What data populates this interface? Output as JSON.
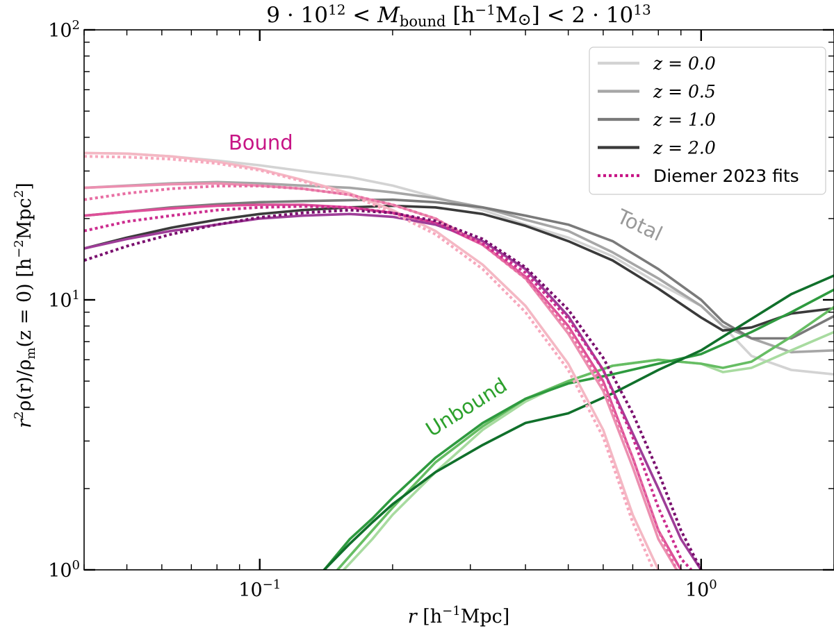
{
  "chart_data": {
    "type": "line",
    "title": "9·10¹² < M_bound [h⁻¹M⊙] < 2·10¹³",
    "title_parts": {
      "prefix": "9 · 10",
      "exp1": "12",
      "lt": " < ",
      "M": "M",
      "sub": "bound",
      "unit_open": " [h",
      "unit_exp": "−1",
      "unit_msun": "M",
      "unit_close": "] < 2 · 10",
      "exp2": "13"
    },
    "xlabel": "r [h⁻¹Mpc]",
    "xlabel_parts": {
      "r": "r",
      "open": " [h",
      "exp": "−1",
      "close": "Mpc]"
    },
    "ylabel": "r²ρ(r)/ρm(z = 0) [h⁻²Mpc²]",
    "ylabel_parts": {
      "r": "r",
      "rexp": "2",
      "rho": "ρ(r)/ρ",
      "msub": "m",
      "zpart": "(z = 0) [h",
      "hexp": "−2",
      "mpc": "Mpc",
      "mexp": "2",
      "close": "]"
    },
    "xscale": "log",
    "yscale": "log",
    "xlim": [
      0.04,
      2.0
    ],
    "ylim": [
      1,
      100
    ],
    "xticks": [
      {
        "value": 0.1,
        "base": "10",
        "exp": "−1"
      },
      {
        "value": 1.0,
        "base": "10",
        "exp": "0"
      }
    ],
    "yticks": [
      {
        "value": 1,
        "base": "10",
        "exp": "0"
      },
      {
        "value": 10,
        "base": "10",
        "exp": "1"
      },
      {
        "value": 100,
        "base": "10",
        "exp": "2"
      }
    ],
    "legend": {
      "position": "top-right",
      "entries": [
        {
          "label": "z = 0.0",
          "color": "#d3d3d3",
          "style": "solid"
        },
        {
          "label": "z = 0.5",
          "color": "#a6a6a6",
          "style": "solid"
        },
        {
          "label": "z = 1.0",
          "color": "#7a7a7a",
          "style": "solid"
        },
        {
          "label": "z = 2.0",
          "color": "#3a3a3a",
          "style": "solid"
        },
        {
          "label": "Diemer 2023 fits",
          "color": "#c71585",
          "style": "dotted"
        }
      ]
    },
    "annotations": [
      {
        "text": "Bound",
        "x": 0.085,
        "y": 36,
        "rotate": 0,
        "color": "#c71585"
      },
      {
        "text": "Total",
        "x": 0.64,
        "y": 19.5,
        "rotate": 25,
        "color": "#999999"
      },
      {
        "text": "Unbound",
        "x": 0.245,
        "y": 3.1,
        "rotate": -32,
        "color": "#2ca02c"
      }
    ],
    "series": [
      {
        "name": "Total z=0.0",
        "group": "total",
        "z": "0.0",
        "color": "#d3d3d3",
        "x": [
          0.04,
          0.05,
          0.063,
          0.08,
          0.1,
          0.125,
          0.16,
          0.2,
          0.25,
          0.32,
          0.4,
          0.5,
          0.63,
          0.8,
          1.0,
          1.12,
          1.3,
          1.6,
          2.0
        ],
        "y": [
          35,
          34.8,
          34,
          32.8,
          31.5,
          30,
          28.5,
          26.5,
          24,
          21.5,
          19,
          17,
          14.5,
          11.5,
          9.5,
          8,
          6.2,
          5.5,
          5.3
        ]
      },
      {
        "name": "Total z=0.5",
        "group": "total",
        "z": "0.5",
        "color": "#a6a6a6",
        "x": [
          0.04,
          0.05,
          0.063,
          0.08,
          0.1,
          0.125,
          0.16,
          0.2,
          0.25,
          0.32,
          0.4,
          0.5,
          0.63,
          0.8,
          1.0,
          1.12,
          1.3,
          1.6,
          2.0
        ],
        "y": [
          26,
          26.5,
          27,
          27.3,
          27,
          26.5,
          26,
          25,
          23.8,
          22,
          19.8,
          18,
          15,
          12,
          9.5,
          8,
          7.2,
          6.4,
          6.5
        ]
      },
      {
        "name": "Total z=1.0",
        "group": "total",
        "z": "1.0",
        "color": "#7a7a7a",
        "x": [
          0.04,
          0.05,
          0.063,
          0.08,
          0.1,
          0.125,
          0.16,
          0.2,
          0.25,
          0.32,
          0.4,
          0.5,
          0.63,
          0.8,
          1.0,
          1.12,
          1.3,
          1.6,
          2.0
        ],
        "y": [
          20.5,
          21.2,
          22,
          22.6,
          23,
          23.2,
          23.4,
          23.5,
          23,
          22,
          20.5,
          19,
          16.5,
          13,
          10,
          8.3,
          7.2,
          7.2,
          8.7
        ]
      },
      {
        "name": "Total z=2.0",
        "group": "total",
        "z": "2.0",
        "color": "#3a3a3a",
        "x": [
          0.04,
          0.05,
          0.063,
          0.08,
          0.1,
          0.125,
          0.16,
          0.2,
          0.25,
          0.32,
          0.4,
          0.5,
          0.63,
          0.8,
          1.0,
          1.12,
          1.3,
          1.6,
          2.0
        ],
        "y": [
          15.5,
          17,
          18.5,
          19.8,
          20.8,
          21.5,
          22,
          22.3,
          22,
          20.8,
          18.8,
          16.5,
          14,
          11,
          8.6,
          7.7,
          7.9,
          8.9,
          9.3
        ]
      },
      {
        "name": "Bound z=0.0",
        "group": "bound",
        "z": "0.0",
        "color": "#f4b8c4",
        "x": [
          0.04,
          0.05,
          0.063,
          0.08,
          0.1,
          0.125,
          0.16,
          0.2,
          0.25,
          0.32,
          0.4,
          0.5,
          0.6,
          0.7,
          0.8
        ],
        "y": [
          35,
          34.8,
          34,
          32.5,
          30.5,
          27.8,
          24.8,
          21.5,
          18,
          13.5,
          9.5,
          5.8,
          3.3,
          1.6,
          1
        ]
      },
      {
        "name": "Bound z=0.5",
        "group": "bound",
        "z": "0.5",
        "color": "#ec8fb0",
        "x": [
          0.04,
          0.05,
          0.063,
          0.08,
          0.1,
          0.125,
          0.16,
          0.2,
          0.25,
          0.32,
          0.4,
          0.5,
          0.6,
          0.7,
          0.8,
          0.88
        ],
        "y": [
          26,
          26.4,
          26.8,
          27,
          26.5,
          25.8,
          24.5,
          22.5,
          20,
          16,
          12,
          7.5,
          4.6,
          2.4,
          1.3,
          1
        ]
      },
      {
        "name": "Bound z=1.0",
        "group": "bound",
        "z": "1.0",
        "color": "#dd4f98",
        "x": [
          0.04,
          0.05,
          0.063,
          0.08,
          0.1,
          0.125,
          0.16,
          0.2,
          0.25,
          0.32,
          0.4,
          0.5,
          0.6,
          0.7,
          0.8,
          0.9
        ],
        "y": [
          20.5,
          21.2,
          21.8,
          22.3,
          22.5,
          22.5,
          22,
          21,
          19.3,
          16,
          12.2,
          8,
          5,
          2.6,
          1.4,
          1
        ]
      },
      {
        "name": "Bound z=2.0",
        "group": "bound",
        "z": "2.0",
        "color": "#9e3d98",
        "x": [
          0.04,
          0.05,
          0.063,
          0.08,
          0.1,
          0.125,
          0.16,
          0.2,
          0.25,
          0.32,
          0.4,
          0.5,
          0.6,
          0.7,
          0.8,
          0.9,
          1.0
        ],
        "y": [
          15.5,
          16.8,
          18,
          19,
          20,
          20.5,
          20.8,
          20.3,
          19,
          16.5,
          13,
          8.7,
          5.5,
          3.2,
          2,
          1.3,
          1
        ]
      },
      {
        "name": "Fit z=0.0",
        "group": "fit",
        "z": "0.0",
        "color": "#f7a8bd",
        "x": [
          0.04,
          0.05,
          0.063,
          0.08,
          0.1,
          0.125,
          0.16,
          0.2,
          0.25,
          0.32,
          0.4,
          0.5,
          0.6,
          0.7,
          0.78
        ],
        "y": [
          34,
          33.8,
          33.2,
          32,
          30.2,
          27.5,
          24.5,
          21,
          17.5,
          13,
          9,
          5.5,
          3.1,
          1.5,
          1
        ]
      },
      {
        "name": "Fit z=0.5",
        "group": "fit",
        "z": "0.5",
        "color": "#e86ea3",
        "x": [
          0.04,
          0.05,
          0.063,
          0.08,
          0.1,
          0.125,
          0.16,
          0.2,
          0.25,
          0.32,
          0.4,
          0.5,
          0.6,
          0.7,
          0.8,
          0.88
        ],
        "y": [
          23.5,
          24.8,
          25.8,
          26.4,
          26.4,
          25.8,
          24.5,
          22.5,
          20,
          16,
          12,
          7.8,
          4.8,
          2.6,
          1.4,
          1
        ]
      },
      {
        "name": "Fit z=1.0",
        "group": "fit",
        "z": "1.0",
        "color": "#cc2c8e",
        "x": [
          0.04,
          0.05,
          0.063,
          0.08,
          0.1,
          0.125,
          0.16,
          0.2,
          0.25,
          0.32,
          0.4,
          0.5,
          0.6,
          0.7,
          0.8,
          0.9,
          0.95
        ],
        "y": [
          18,
          19.5,
          20.5,
          21.5,
          22,
          22.2,
          22,
          21,
          19.3,
          16.2,
          12.6,
          8.5,
          5.5,
          3.1,
          1.7,
          1.1,
          1
        ]
      },
      {
        "name": "Fit z=2.0",
        "group": "fit",
        "z": "2.0",
        "color": "#7a0f6e",
        "x": [
          0.04,
          0.05,
          0.063,
          0.08,
          0.1,
          0.125,
          0.16,
          0.2,
          0.25,
          0.32,
          0.4,
          0.5,
          0.6,
          0.7,
          0.8,
          0.9,
          1.0
        ],
        "y": [
          14,
          15.8,
          17.5,
          19,
          20.2,
          21,
          21.5,
          21,
          19.6,
          16.8,
          13.2,
          9.2,
          6.1,
          3.8,
          2.3,
          1.4,
          1
        ]
      },
      {
        "name": "Unbound z=0.0",
        "group": "unbound",
        "z": "0.0",
        "color": "#a8dba0",
        "x": [
          0.155,
          0.18,
          0.2,
          0.25,
          0.32,
          0.4,
          0.5,
          0.63,
          0.8,
          1.0,
          1.12,
          1.3,
          1.6,
          2.0
        ],
        "y": [
          1,
          1.3,
          1.6,
          2.3,
          3.3,
          4.2,
          5.0,
          5.7,
          6.0,
          5.8,
          5.4,
          5.6,
          6.5,
          7.6
        ]
      },
      {
        "name": "Unbound z=0.5",
        "group": "unbound",
        "z": "0.5",
        "color": "#66bd63",
        "x": [
          0.15,
          0.18,
          0.2,
          0.25,
          0.32,
          0.4,
          0.5,
          0.63,
          0.8,
          1.0,
          1.12,
          1.3,
          1.6,
          2.0
        ],
        "y": [
          1,
          1.4,
          1.7,
          2.5,
          3.4,
          4.3,
          5.0,
          5.7,
          6.0,
          5.8,
          5.6,
          5.9,
          7.3,
          9.4
        ]
      },
      {
        "name": "Unbound z=1.0",
        "group": "unbound",
        "z": "1.0",
        "color": "#2e9a3f",
        "x": [
          0.14,
          0.16,
          0.18,
          0.2,
          0.25,
          0.32,
          0.4,
          0.5,
          0.63,
          0.8,
          1.0,
          1.3,
          1.6,
          2.0
        ],
        "y": [
          1,
          1.3,
          1.55,
          1.85,
          2.6,
          3.5,
          4.3,
          4.9,
          5.3,
          5.8,
          6.3,
          7.6,
          9.0,
          10.9
        ]
      },
      {
        "name": "Unbound z=2.0",
        "group": "unbound",
        "z": "2.0",
        "color": "#10702b",
        "x": [
          0.14,
          0.16,
          0.18,
          0.2,
          0.25,
          0.32,
          0.4,
          0.5,
          0.63,
          0.8,
          1.0,
          1.3,
          1.6,
          2.0
        ],
        "y": [
          1,
          1.25,
          1.5,
          1.75,
          2.3,
          2.9,
          3.5,
          3.8,
          4.5,
          5.5,
          6.5,
          8.5,
          10.5,
          12.3
        ]
      }
    ]
  }
}
